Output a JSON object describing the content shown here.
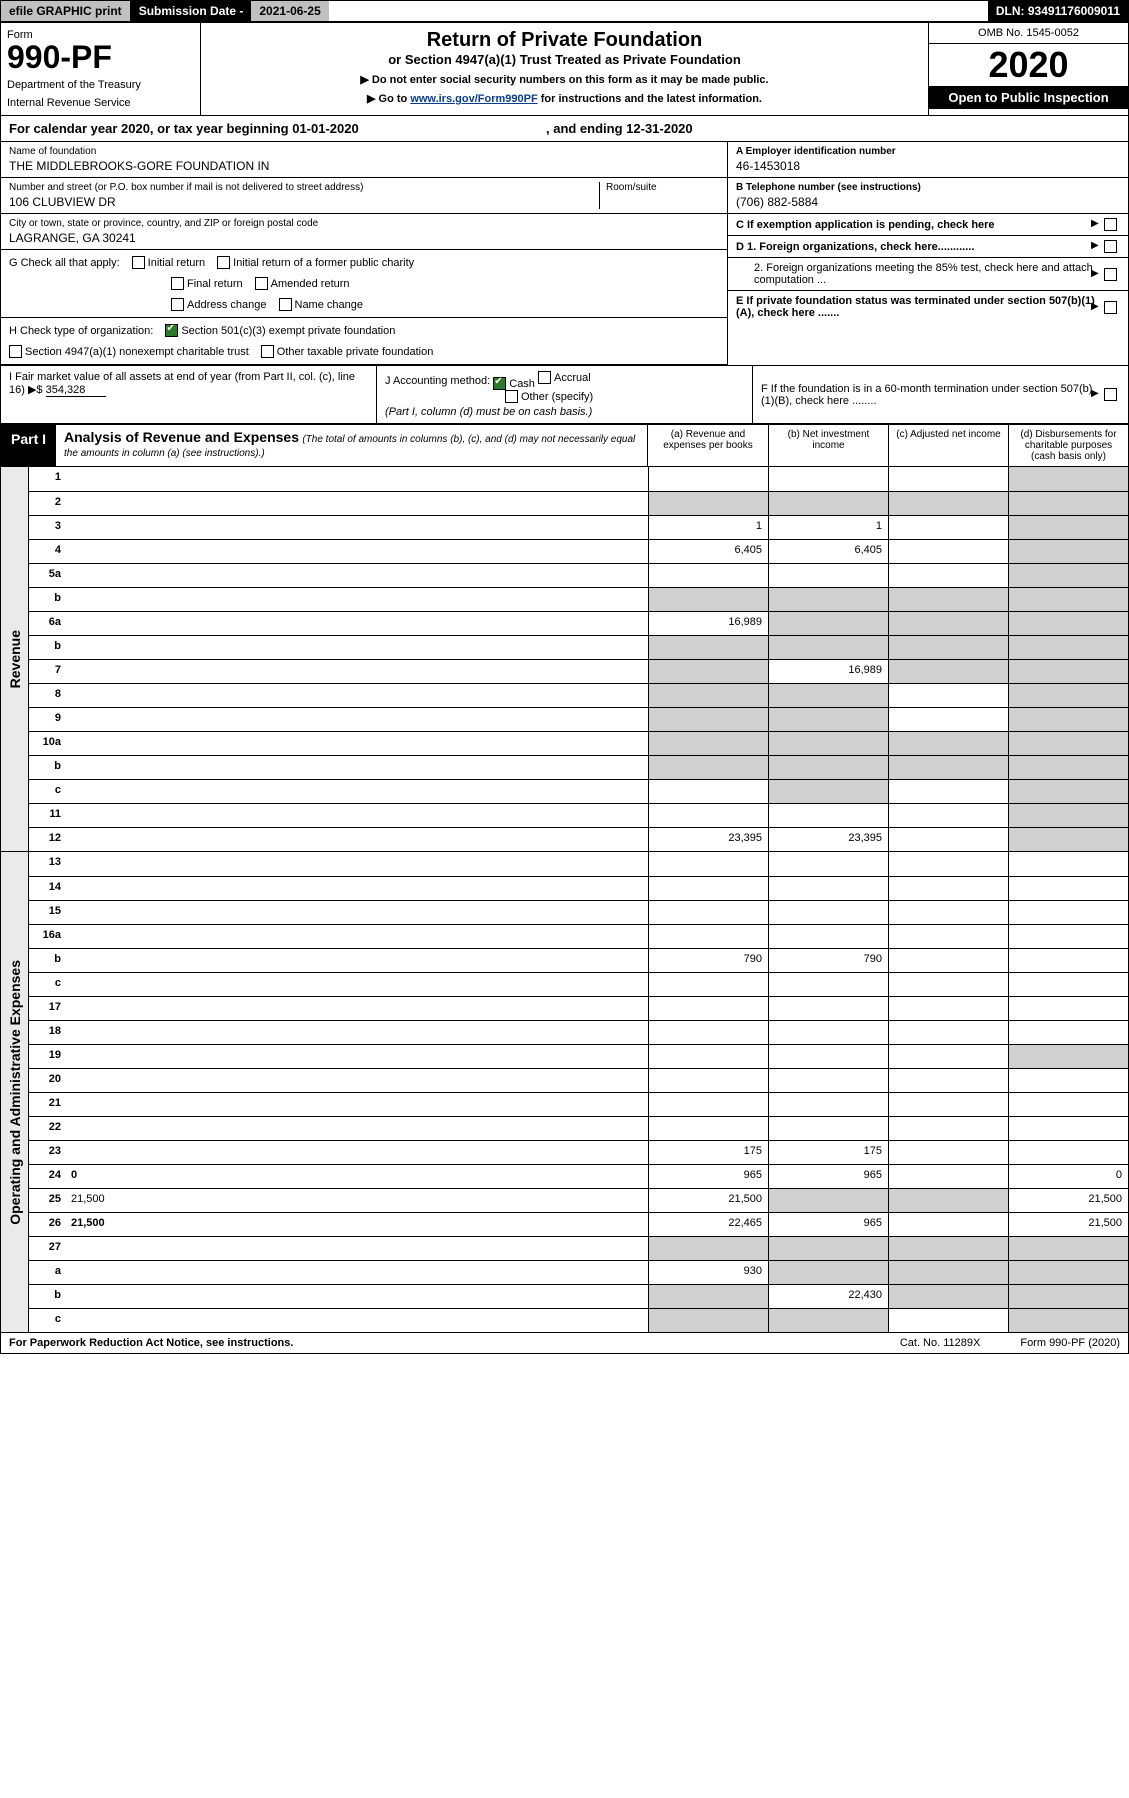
{
  "topbar": {
    "efile": "efile GRAPHIC print",
    "subdate_label": "Submission Date - ",
    "subdate_val": "2021-06-25",
    "dln": "DLN: 93491176009011"
  },
  "header": {
    "formword": "Form",
    "formnum": "990-PF",
    "dept1": "Department of the Treasury",
    "dept2": "Internal Revenue Service",
    "title": "Return of Private Foundation",
    "subtitle": "or Section 4947(a)(1) Trust Treated as Private Foundation",
    "instr1": "▶ Do not enter social security numbers on this form as it may be made public.",
    "instr2a": "▶ Go to ",
    "instr2link": "www.irs.gov/Form990PF",
    "instr2b": " for instructions and the latest information.",
    "omb": "OMB No. 1545-0052",
    "year": "2020",
    "open": "Open to Public Inspection"
  },
  "calyear": {
    "text": "For calendar year 2020, or tax year beginning 01-01-2020",
    "ending": ", and ending 12-31-2020"
  },
  "info": {
    "name_label": "Name of foundation",
    "name": "THE MIDDLEBROOKS-GORE FOUNDATION IN",
    "addr_label": "Number and street (or P.O. box number if mail is not delivered to street address)",
    "addr": "106 CLUBVIEW DR",
    "room_label": "Room/suite",
    "city_label": "City or town, state or province, country, and ZIP or foreign postal code",
    "city": "LAGRANGE, GA  30241",
    "ein_label": "A Employer identification number",
    "ein": "46-1453018",
    "phone_label": "B Telephone number (see instructions)",
    "phone": "(706) 882-5884",
    "c_label": "C If exemption application is pending, check here",
    "d1_label": "D 1. Foreign organizations, check here............",
    "d2_label": "2. Foreign organizations meeting the 85% test, check here and attach computation ...",
    "e_label": "E  If private foundation status was terminated under section 507(b)(1)(A), check here .......",
    "f_label": "F  If the foundation is in a 60-month termination under section 507(b)(1)(B), check here ........"
  },
  "g": {
    "label": "G Check all that apply:",
    "opts": [
      "Initial return",
      "Initial return of a former public charity",
      "Final return",
      "Amended return",
      "Address change",
      "Name change"
    ]
  },
  "h": {
    "label": "H Check type of organization:",
    "opt1": "Section 501(c)(3) exempt private foundation",
    "opt2": "Section 4947(a)(1) nonexempt charitable trust",
    "opt3": "Other taxable private foundation"
  },
  "i": {
    "label": "I Fair market value of all assets at end of year (from Part II, col. (c), line 16) ▶$",
    "val": "  354,328"
  },
  "j": {
    "label": "J Accounting method:",
    "opts": [
      "Cash",
      "Accrual",
      "Other (specify)"
    ],
    "note": "(Part I, column (d) must be on cash basis.)"
  },
  "part1": {
    "label": "Part I",
    "title": "Analysis of Revenue and Expenses",
    "ital": " (The total of amounts in columns (b), (c), and (d) may not necessarily equal the amounts in column (a) (see instructions).)",
    "cols": [
      "(a)  Revenue and expenses per books",
      "(b)  Net investment income",
      "(c)  Adjusted net income",
      "(d)  Disbursements for charitable purposes (cash basis only)"
    ]
  },
  "sections": [
    {
      "side": "Revenue",
      "rows": [
        {
          "n": "1",
          "d": "",
          "a": "",
          "b": "",
          "c": "",
          "grayD": true,
          "grayC": false
        },
        {
          "n": "2",
          "d": "",
          "a": "",
          "b": "",
          "c": "",
          "grayA": true,
          "grayB": true,
          "grayC": true,
          "grayD": true
        },
        {
          "n": "3",
          "d": "",
          "a": "1",
          "b": "1",
          "c": "",
          "grayD": true
        },
        {
          "n": "4",
          "d": "",
          "a": "6,405",
          "b": "6,405",
          "c": "",
          "grayD": true
        },
        {
          "n": "5a",
          "d": "",
          "a": "",
          "b": "",
          "c": "",
          "grayD": true
        },
        {
          "n": "b",
          "d": "",
          "a": "",
          "b": "",
          "c": "",
          "grayA": true,
          "grayB": true,
          "grayC": true,
          "grayD": true
        },
        {
          "n": "6a",
          "d": "",
          "a": "16,989",
          "b": "",
          "c": "",
          "grayB": true,
          "grayC": true,
          "grayD": true
        },
        {
          "n": "b",
          "d": "",
          "a": "",
          "b": "",
          "c": "",
          "grayA": true,
          "grayB": true,
          "grayC": true,
          "grayD": true
        },
        {
          "n": "7",
          "d": "",
          "a": "",
          "b": "16,989",
          "c": "",
          "grayA": true,
          "grayC": true,
          "grayD": true
        },
        {
          "n": "8",
          "d": "",
          "a": "",
          "b": "",
          "c": "",
          "grayA": true,
          "grayB": true,
          "grayD": true
        },
        {
          "n": "9",
          "d": "",
          "a": "",
          "b": "",
          "c": "",
          "grayA": true,
          "grayB": true,
          "grayD": true
        },
        {
          "n": "10a",
          "d": "",
          "a": "",
          "b": "",
          "c": "",
          "grayA": true,
          "grayB": true,
          "grayC": true,
          "grayD": true
        },
        {
          "n": "b",
          "d": "",
          "a": "",
          "b": "",
          "c": "",
          "grayA": true,
          "grayB": true,
          "grayC": true,
          "grayD": true
        },
        {
          "n": "c",
          "d": "",
          "a": "",
          "b": "",
          "c": "",
          "grayB": true,
          "grayD": true
        },
        {
          "n": "11",
          "d": "",
          "a": "",
          "b": "",
          "c": "",
          "grayD": true
        },
        {
          "n": "12",
          "d": "",
          "bold": true,
          "a": "23,395",
          "b": "23,395",
          "c": "",
          "grayD": true
        }
      ]
    },
    {
      "side": "Operating and Administrative Expenses",
      "rows": [
        {
          "n": "13",
          "d": "",
          "a": "",
          "b": "",
          "c": ""
        },
        {
          "n": "14",
          "d": "",
          "a": "",
          "b": "",
          "c": ""
        },
        {
          "n": "15",
          "d": "",
          "a": "",
          "b": "",
          "c": ""
        },
        {
          "n": "16a",
          "d": "",
          "a": "",
          "b": "",
          "c": ""
        },
        {
          "n": "b",
          "d": "",
          "a": "790",
          "b": "790",
          "c": ""
        },
        {
          "n": "c",
          "d": "",
          "a": "",
          "b": "",
          "c": ""
        },
        {
          "n": "17",
          "d": "",
          "a": "",
          "b": "",
          "c": ""
        },
        {
          "n": "18",
          "d": "",
          "a": "",
          "b": "",
          "c": ""
        },
        {
          "n": "19",
          "d": "",
          "a": "",
          "b": "",
          "c": "",
          "grayD": true
        },
        {
          "n": "20",
          "d": "",
          "a": "",
          "b": "",
          "c": ""
        },
        {
          "n": "21",
          "d": "",
          "a": "",
          "b": "",
          "c": ""
        },
        {
          "n": "22",
          "d": "",
          "a": "",
          "b": "",
          "c": ""
        },
        {
          "n": "23",
          "d": "",
          "a": "175",
          "b": "175",
          "c": ""
        },
        {
          "n": "24",
          "d": "0",
          "bold": true,
          "a": "965",
          "b": "965",
          "c": ""
        },
        {
          "n": "25",
          "d": "21,500",
          "a": "21,500",
          "b": "",
          "c": "",
          "grayB": true,
          "grayC": true
        },
        {
          "n": "26",
          "d": "21,500",
          "bold": true,
          "a": "22,465",
          "b": "965",
          "c": ""
        },
        {
          "n": "27",
          "d": "",
          "a": "",
          "b": "",
          "c": "",
          "grayA": true,
          "grayB": true,
          "grayC": true,
          "grayD": true
        },
        {
          "n": "a",
          "d": "",
          "bold": true,
          "a": "930",
          "b": "",
          "c": "",
          "grayB": true,
          "grayC": true,
          "grayD": true
        },
        {
          "n": "b",
          "d": "",
          "bold": true,
          "a": "",
          "b": "22,430",
          "c": "",
          "grayA": true,
          "grayC": true,
          "grayD": true
        },
        {
          "n": "c",
          "d": "",
          "bold": true,
          "a": "",
          "b": "",
          "c": "",
          "grayA": true,
          "grayB": true,
          "grayD": true
        }
      ]
    }
  ],
  "footer": {
    "l": "For Paperwork Reduction Act Notice, see instructions.",
    "c": "Cat. No. 11289X",
    "r": "Form 990-PF (2020)"
  }
}
